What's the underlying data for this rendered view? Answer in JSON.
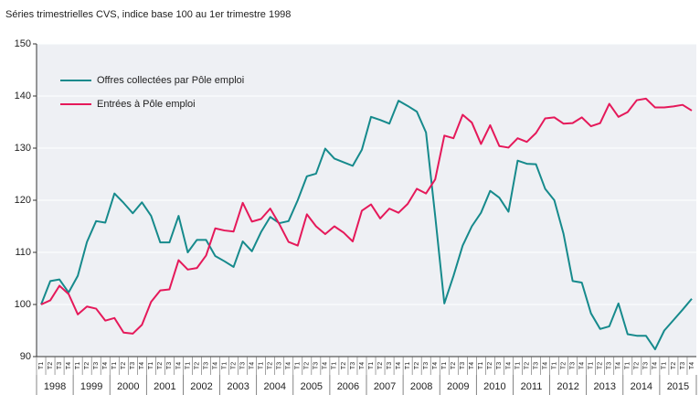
{
  "chart_data": {
    "type": "line",
    "title": "Séries trimestrielles CVS, indice base 100 au 1er trimestre 1998",
    "categories": [
      "T1",
      "T2",
      "T3",
      "T4",
      "T1",
      "T2",
      "T3",
      "T4",
      "T1",
      "T2",
      "T3",
      "T4",
      "T1",
      "T2",
      "T3",
      "T4",
      "T1",
      "T2",
      "T3",
      "T4",
      "T1",
      "T2",
      "T3",
      "T4",
      "T1",
      "T2",
      "T3",
      "T4",
      "T1",
      "T2",
      "T3",
      "T4",
      "T1",
      "T2",
      "T3",
      "T4",
      "T1",
      "T2",
      "T3",
      "T4",
      "T1",
      "T2",
      "T3",
      "T4",
      "T1",
      "T2",
      "T3",
      "T4",
      "T1",
      "T2",
      "T3",
      "T4",
      "T1",
      "T2",
      "T3",
      "T4",
      "T1",
      "T2",
      "T3",
      "T4",
      "T1",
      "T2",
      "T3",
      "T4",
      "T1",
      "T2",
      "T3",
      "T4",
      "T1",
      "T2",
      "T3",
      "T4"
    ],
    "years": [
      "1998",
      "1999",
      "2000",
      "2001",
      "2002",
      "2003",
      "2004",
      "2005",
      "2006",
      "2007",
      "2008",
      "2009",
      "2010",
      "2011",
      "2012",
      "2013",
      "2014",
      "2015"
    ],
    "series": [
      {
        "name": "Offres collectées par Pôle emploi",
        "color": "#168a8c",
        "values": [
          100,
          104.5,
          104.8,
          102.3,
          105.5,
          112,
          116,
          115.7,
          121.3,
          119.5,
          117.5,
          119.6,
          117,
          111.9,
          111.9,
          117,
          110,
          112.4,
          112.4,
          109.3,
          108.3,
          107.2,
          112.1,
          110.2,
          113.9,
          116.8,
          115.6,
          116,
          120,
          124.6,
          125.1,
          129.9,
          128,
          127.3,
          126.6,
          129.7,
          136,
          135.4,
          134.7,
          139.1,
          138.1,
          137,
          133,
          117,
          100.2,
          105.5,
          111.3,
          115,
          117.6,
          121.8,
          120.5,
          117.8,
          127.6,
          127,
          126.9,
          122.2,
          120,
          113.6,
          104.5,
          104.2,
          98.3,
          95.3,
          95.8,
          100.2,
          94.3,
          94,
          94,
          91.4,
          95,
          97,
          99,
          101.1
        ]
      },
      {
        "name": "Entrées à Pôle emploi",
        "color": "#e5195a",
        "values": [
          100,
          100.8,
          103.6,
          102,
          98.1,
          99.6,
          99.2,
          96.9,
          97.4,
          94.6,
          94.4,
          96.1,
          100.5,
          102.7,
          102.9,
          108.5,
          106.7,
          107,
          109.4,
          114.6,
          114.2,
          114,
          119.5,
          115.9,
          116.4,
          118.4,
          115.4,
          112,
          111.3,
          117.3,
          115,
          113.5,
          115,
          113.8,
          112.1,
          118,
          119.2,
          116.5,
          118.4,
          117.6,
          119.3,
          122.2,
          121.3,
          124,
          132.4,
          131.9,
          136.4,
          134.9,
          130.8,
          134.4,
          130.4,
          130.1,
          131.9,
          131.2,
          132.9,
          135.7,
          135.9,
          134.7,
          134.8,
          135.9,
          134.2,
          134.8,
          138.5,
          136,
          136.9,
          139.2,
          139.5,
          137.8,
          137.8,
          138,
          138.3,
          137.2
        ]
      }
    ],
    "ylim": [
      90,
      150
    ],
    "yticks": [
      90,
      100,
      110,
      120,
      130,
      140,
      150
    ],
    "grid": true,
    "legend": "top-left"
  }
}
